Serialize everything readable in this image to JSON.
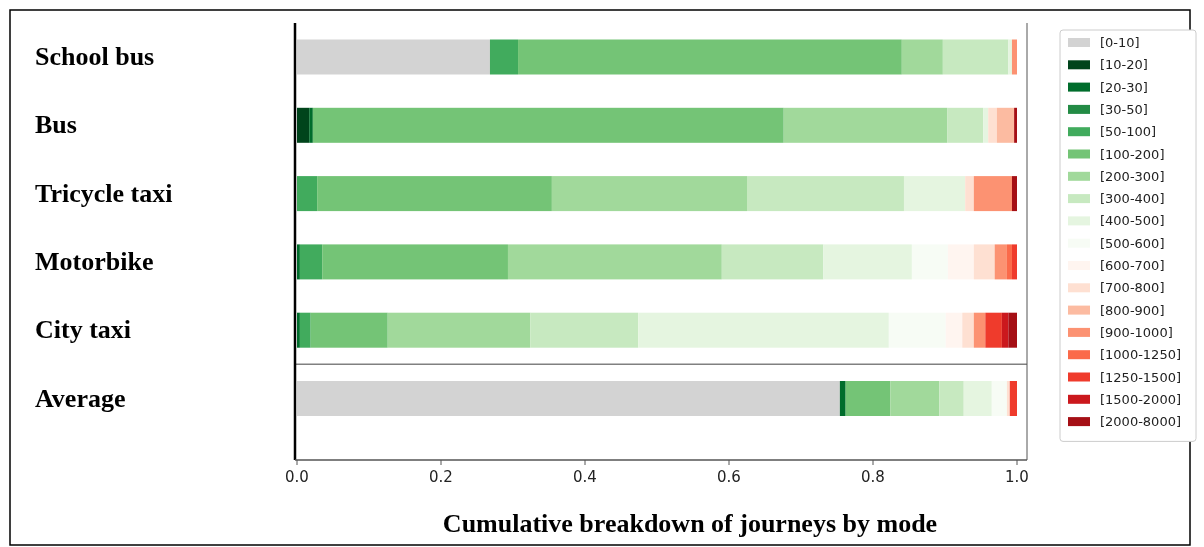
{
  "chart_data": {
    "type": "bar",
    "orientation": "horizontal",
    "stacked": true,
    "title": "Cumulative breakdown of journeys by mode",
    "categories": [
      "School bus",
      "Bus",
      "Tricycle taxi",
      "Motorbike",
      "City taxi",
      "Average"
    ],
    "xlim": [
      0,
      1
    ],
    "xticks": [
      {
        "value": 0,
        "label": "0.0"
      },
      0.2,
      0.4,
      0.6,
      0.8,
      {
        "value": 1,
        "label": "1.0"
      }
    ],
    "legend": "right",
    "series": [
      {
        "name": "[0-10]",
        "color": "#d3d3d3",
        "values": [
          0.268,
          0,
          0,
          0,
          0,
          0.754
        ]
      },
      {
        "name": "[10-20]",
        "color": "#00441b",
        "values": [
          0,
          0.017,
          0,
          0,
          0,
          0
        ]
      },
      {
        "name": "[20-30]",
        "color": "#006d2c",
        "values": [
          0,
          0.005,
          0,
          0.004,
          0.004,
          0.008
        ]
      },
      {
        "name": "[30-50]",
        "color": "#238b45",
        "values": [
          0,
          0,
          0,
          0,
          0,
          0
        ]
      },
      {
        "name": "[50-100]",
        "color": "#41ab5d",
        "values": [
          0.039,
          0,
          0.028,
          0.031,
          0.015,
          0
        ]
      },
      {
        "name": "[100-200]",
        "color": "#74c476",
        "values": [
          0.533,
          0.654,
          0.326,
          0.258,
          0.107,
          0.062
        ]
      },
      {
        "name": "[200-300]",
        "color": "#a1d99b",
        "values": [
          0.057,
          0.227,
          0.271,
          0.297,
          0.198,
          0.068
        ]
      },
      {
        "name": "[300-400]",
        "color": "#c7e9c0",
        "values": [
          0.091,
          0.05,
          0.218,
          0.141,
          0.15,
          0.034
        ]
      },
      {
        "name": "[400-500]",
        "color": "#e5f5e0",
        "values": [
          0.005,
          0.007,
          0.085,
          0.123,
          0.348,
          0.039
        ]
      },
      {
        "name": "[500-600]",
        "color": "#f7fcf5",
        "values": [
          0,
          0,
          0,
          0.05,
          0.079,
          0.021
        ]
      },
      {
        "name": "[600-700]",
        "color": "#fff5f0",
        "values": [
          0,
          0,
          0,
          0.036,
          0.023,
          0
        ]
      },
      {
        "name": "[700-800]",
        "color": "#fee0d2",
        "values": [
          0,
          0.012,
          0.012,
          0.029,
          0.016,
          0.004
        ]
      },
      {
        "name": "[800-900]",
        "color": "#fcbba1",
        "values": [
          0,
          0.024,
          0,
          0,
          0,
          0
        ]
      },
      {
        "name": "[900-1000]",
        "color": "#fc9272",
        "values": [
          0.007,
          0,
          0.053,
          0.017,
          0.016,
          0
        ]
      },
      {
        "name": "[1000-1250]",
        "color": "#fb6a4a",
        "values": [
          0,
          0,
          0,
          0.007,
          0,
          0
        ]
      },
      {
        "name": "[1250-1500]",
        "color": "#ef3b2c",
        "values": [
          0,
          0,
          0,
          0.007,
          0.023,
          0.01
        ]
      },
      {
        "name": "[1500-2000]",
        "color": "#cb181d",
        "values": [
          0,
          0,
          0,
          0,
          0.009,
          0
        ]
      },
      {
        "name": "[2000-8000]",
        "color": "#a50f15",
        "values": [
          0,
          0.004,
          0.007,
          0,
          0.012,
          0
        ]
      }
    ]
  }
}
